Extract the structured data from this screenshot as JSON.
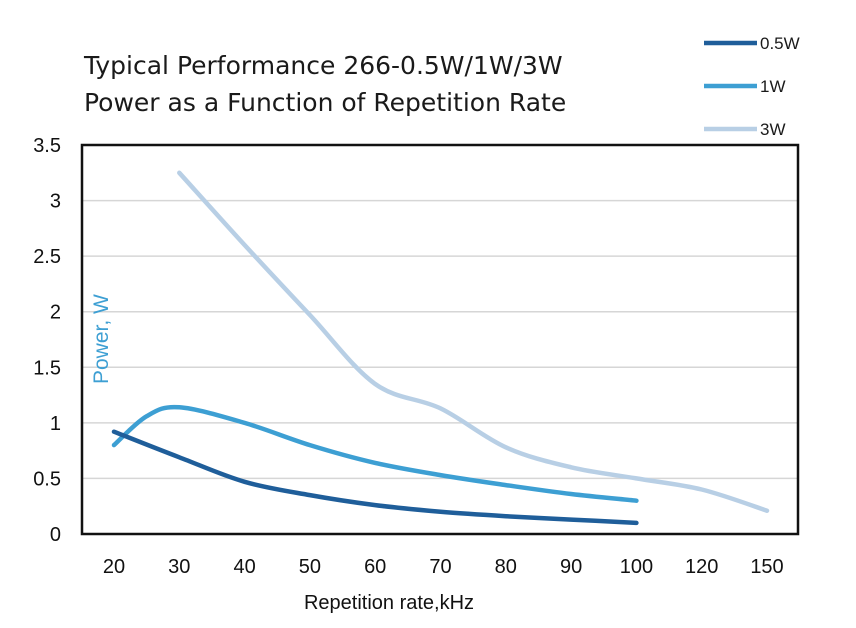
{
  "chart_data": {
    "type": "line",
    "title": "Typical Performance 266-0.5W/1W/3W",
    "subtitle": "Power as a Function of Repetition Rate",
    "xlabel": "Repetition rate,kHz",
    "ylabel": "Power, W",
    "x_ticks": [
      "20",
      "30",
      "40",
      "50",
      "60",
      "70",
      "80",
      "90",
      "100",
      "120",
      "150"
    ],
    "y_ticks": [
      "0",
      "0.5",
      "1",
      "1.5",
      "2",
      "2.5",
      "3",
      "3.5"
    ],
    "ylim": [
      0,
      3.5
    ],
    "grid": true,
    "legend_position": "top-right",
    "note": "x axis positions are evenly spaced categories (20–100 in steps of 10, then 120, 150)",
    "series": [
      {
        "name": "0.5W",
        "color": "#1f5e9a",
        "points": [
          {
            "x": 20,
            "y": 0.92
          },
          {
            "x": 30,
            "y": 0.69
          },
          {
            "x": 40,
            "y": 0.47
          },
          {
            "x": 50,
            "y": 0.35
          },
          {
            "x": 60,
            "y": 0.26
          },
          {
            "x": 70,
            "y": 0.2
          },
          {
            "x": 80,
            "y": 0.16
          },
          {
            "x": 90,
            "y": 0.13
          },
          {
            "x": 100,
            "y": 0.1
          }
        ]
      },
      {
        "name": "1W",
        "color": "#3d9fd3",
        "points": [
          {
            "x": 20,
            "y": 0.8
          },
          {
            "x": 25,
            "y": 1.06
          },
          {
            "x": 30,
            "y": 1.14
          },
          {
            "x": 40,
            "y": 1.0
          },
          {
            "x": 50,
            "y": 0.8
          },
          {
            "x": 60,
            "y": 0.64
          },
          {
            "x": 70,
            "y": 0.53
          },
          {
            "x": 80,
            "y": 0.44
          },
          {
            "x": 90,
            "y": 0.36
          },
          {
            "x": 100,
            "y": 0.3
          }
        ]
      },
      {
        "name": "3W",
        "color": "#b8cfe5",
        "points": [
          {
            "x": 30,
            "y": 3.25
          },
          {
            "x": 40,
            "y": 2.6
          },
          {
            "x": 50,
            "y": 1.97
          },
          {
            "x": 60,
            "y": 1.35
          },
          {
            "x": 70,
            "y": 1.13
          },
          {
            "x": 80,
            "y": 0.78
          },
          {
            "x": 90,
            "y": 0.6
          },
          {
            "x": 100,
            "y": 0.5
          },
          {
            "x": 120,
            "y": 0.4
          },
          {
            "x": 150,
            "y": 0.21
          }
        ]
      }
    ]
  }
}
